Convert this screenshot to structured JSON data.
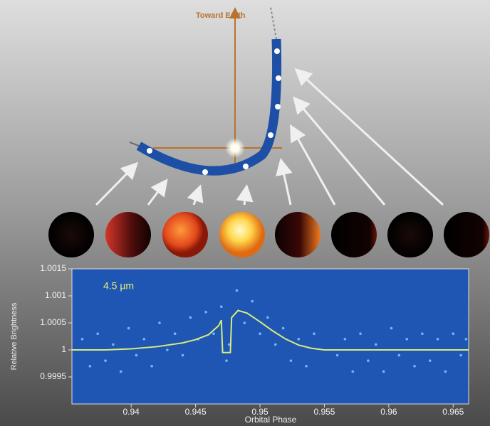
{
  "diagram": {
    "label": "Toward Earth"
  },
  "chart_data": {
    "type": "scatter",
    "annotation": "4.5 µm",
    "xlabel": "Orbital Phase",
    "ylabel": "Relative Brightness",
    "xlim": [
      0.9354,
      0.9662
    ],
    "ylim": [
      0.999,
      1.0015
    ],
    "xticks": [
      0.94,
      0.945,
      0.95,
      0.955,
      0.96,
      0.965
    ],
    "yticks": [
      0.9995,
      1,
      1.0005,
      1.001,
      1.0015
    ],
    "background": "#1f56b3",
    "series": [
      {
        "type": "scatter",
        "color": "#6fb8f5",
        "x": [
          0.9362,
          0.9368,
          0.9374,
          0.938,
          0.9386,
          0.9392,
          0.9398,
          0.9404,
          0.941,
          0.9416,
          0.9422,
          0.9428,
          0.9434,
          0.944,
          0.9446,
          0.9452,
          0.9458,
          0.9464,
          0.947,
          0.9474,
          0.9476,
          0.9482,
          0.9488,
          0.9494,
          0.95,
          0.9506,
          0.9512,
          0.9518,
          0.9524,
          0.953,
          0.9536,
          0.9542,
          0.956,
          0.9566,
          0.9572,
          0.9578,
          0.9584,
          0.959,
          0.9596,
          0.9602,
          0.9608,
          0.9614,
          0.962,
          0.9626,
          0.9632,
          0.9638,
          0.9644,
          0.965,
          0.9656,
          0.966
        ],
        "values": [
          1.0002,
          0.9997,
          1.0003,
          0.9998,
          1.0001,
          0.9996,
          1.0004,
          0.9999,
          1.0002,
          0.9997,
          1.0005,
          1.0,
          1.0003,
          0.9999,
          1.0006,
          1.0002,
          1.0007,
          1.0003,
          1.0008,
          0.9998,
          1.0001,
          1.0011,
          1.0005,
          1.0009,
          1.0003,
          1.0006,
          1.0001,
          1.0004,
          0.9998,
          1.0002,
          0.9997,
          1.0003,
          0.9999,
          1.0002,
          0.9996,
          1.0003,
          0.9998,
          1.0001,
          0.9996,
          1.0004,
          0.9999,
          1.0002,
          0.9997,
          1.0003,
          0.9998,
          1.0002,
          0.9996,
          1.0003,
          0.9999,
          1.0002
        ]
      },
      {
        "type": "line",
        "color": "#d9ec7a",
        "x": [
          0.9354,
          0.938,
          0.94,
          0.942,
          0.944,
          0.945,
          0.946,
          0.9468,
          0.947,
          0.9471,
          0.9477,
          0.9478,
          0.9483,
          0.949,
          0.95,
          0.951,
          0.952,
          0.953,
          0.954,
          0.955,
          0.9662
        ],
        "values": [
          1.0,
          1.0,
          1.00002,
          1.00006,
          1.00013,
          1.00019,
          1.00028,
          1.00045,
          1.00055,
          0.99995,
          0.99995,
          1.0006,
          1.00073,
          1.00068,
          1.00052,
          1.00035,
          1.0002,
          1.00009,
          1.00003,
          1.0,
          1.0
        ]
      }
    ]
  }
}
